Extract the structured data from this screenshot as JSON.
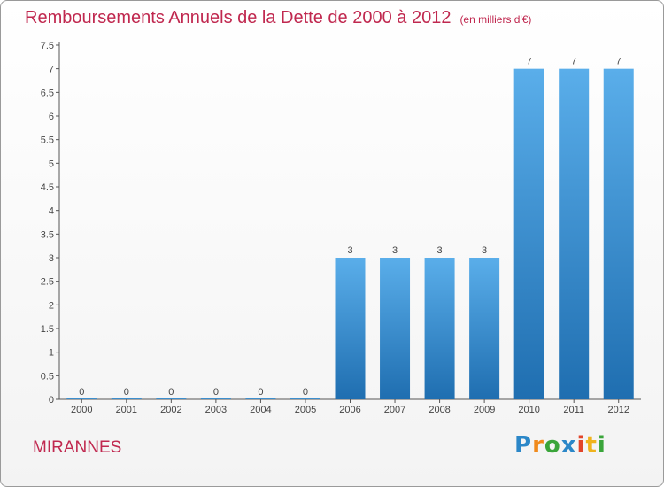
{
  "header": {
    "title": "Remboursements Annuels de la Dette de 2000 à 2012",
    "subtitle": "(en milliers d'€)"
  },
  "footer": {
    "commune": "MIRANNES"
  },
  "logo": {
    "letters": [
      "P",
      "r",
      "o",
      "x",
      "i",
      "t",
      "i"
    ],
    "colors": [
      "#2b87c8",
      "#f08a1c",
      "#3aa53a",
      "#2b87c8",
      "#e2452a",
      "#f0b31c",
      "#3aa53a"
    ]
  },
  "colors": {
    "bar_top": "#5aaeea",
    "bar_bottom": "#1f6eb0",
    "accent": "#c0284f"
  },
  "chart_data": {
    "type": "bar",
    "title": "Remboursements Annuels de la Dette de 2000 à 2012",
    "subtitle": "(en milliers d'€)",
    "categories": [
      "2000",
      "2001",
      "2002",
      "2003",
      "2004",
      "2005",
      "2006",
      "2007",
      "2008",
      "2009",
      "2010",
      "2011",
      "2012"
    ],
    "values": [
      0,
      0,
      0,
      0,
      0,
      0,
      3,
      3,
      3,
      3,
      7,
      7,
      7
    ],
    "data_labels": [
      "0",
      "0",
      "0",
      "0",
      "0",
      "0",
      "3",
      "3",
      "3",
      "3",
      "7",
      "7",
      "7"
    ],
    "yticks": [
      "0",
      "0.5",
      "1",
      "1.5",
      "2",
      "2.5",
      "3",
      "3.5",
      "4",
      "4.5",
      "5",
      "5.5",
      "6",
      "6.5",
      "7",
      "7.5"
    ],
    "ylim": [
      0,
      7.5
    ],
    "grid": false,
    "xlabel": "",
    "ylabel": ""
  }
}
